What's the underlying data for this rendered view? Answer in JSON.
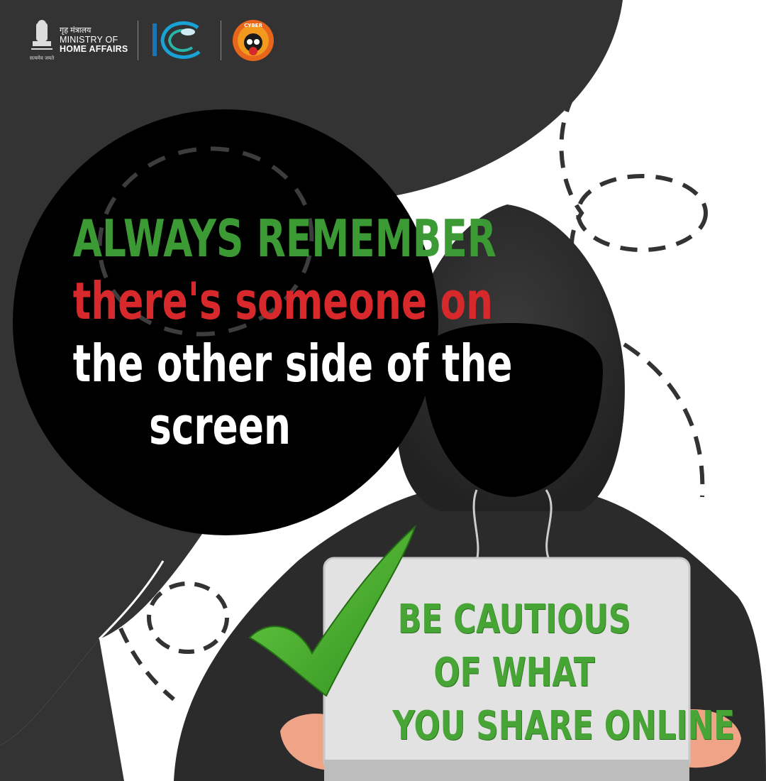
{
  "header": {
    "ministry_hindi": "गृह मंत्रालय",
    "ministry_line1": "MINISTRY OF",
    "ministry_line2": "HOME AFFAIRS",
    "emblem_motto": "सत्यमेव जयते",
    "cyber_dost_label": "CYBER"
  },
  "message": {
    "line1": "ALWAYS REMEMBER",
    "line2": "there's someone on",
    "line3": "the other side of the",
    "line4": "screen"
  },
  "sign": {
    "line1": "BE CAUTIOUS",
    "line2": "OF WHAT",
    "line3": "YOU SHARE ONLINE"
  },
  "colors": {
    "background_dark": "#333333",
    "circle": "#000000",
    "accent_green": "#3c9a35",
    "accent_red": "#d7282b",
    "sign_board": "#e2e2e2",
    "hoodie": "#2b2b2b"
  }
}
